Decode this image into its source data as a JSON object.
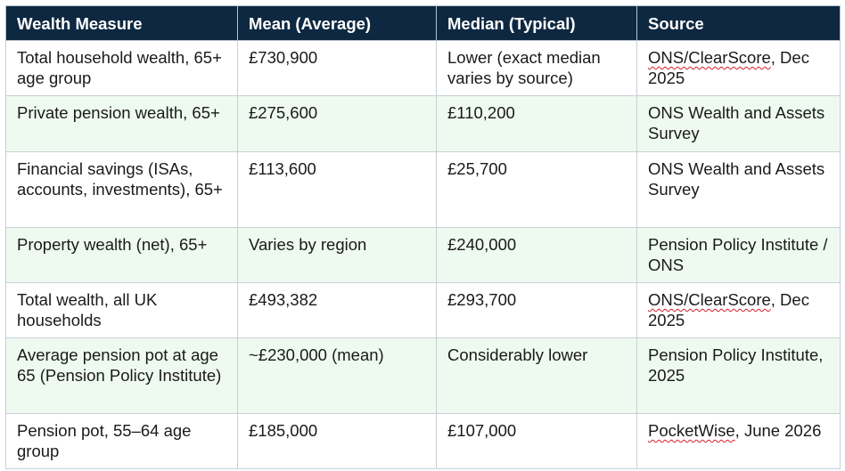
{
  "table": {
    "headers": [
      "Wealth Measure",
      "Mean (Average)",
      "Median (Typical)",
      "Source"
    ],
    "rows": [
      {
        "measure": "Total household wealth, 65+ age group",
        "mean": "£730,900",
        "median": "Lower (exact median varies by source)",
        "source": {
          "flagged": "ONS/ClearScore",
          "rest": ", Dec 2025"
        }
      },
      {
        "measure": "Private pension wealth, 65+",
        "mean": "£275,600",
        "median": "£110,200",
        "source": {
          "flagged": "",
          "rest": "ONS Wealth and Assets Survey"
        }
      },
      {
        "measure": "Financial savings (ISAs, accounts, investments), 65+",
        "mean": "£113,600",
        "median": "£25,700",
        "source": {
          "flagged": "",
          "rest": "ONS Wealth and Assets Survey"
        }
      },
      {
        "measure": "Property wealth (net), 65+",
        "mean": "Varies by region",
        "median": "£240,000",
        "source": {
          "flagged": "",
          "rest": "Pension Policy Institute / ONS"
        }
      },
      {
        "measure": "Total wealth, all UK households",
        "mean": "£493,382",
        "median": "£293,700",
        "source": {
          "flagged": "ONS/ClearScore",
          "rest": ", Dec 2025"
        }
      },
      {
        "measure": "Average pension pot at age 65 (Pension Policy Institute)",
        "mean": "~£230,000 (mean)",
        "median": "Considerably lower",
        "source": {
          "flagged": "",
          "rest": "Pension Policy Institute, 2025"
        }
      },
      {
        "measure": "Pension pot, 55–64 age group",
        "mean": "£185,000",
        "median": "£107,000",
        "source": {
          "flagged": "PocketWise",
          "rest": ", June 2026"
        }
      }
    ]
  },
  "colors": {
    "header_bg": "#0e2841",
    "header_text": "#ffffff",
    "alt_row_bg": "#eefaf0",
    "spellcheck_underline": "#d4202a"
  }
}
